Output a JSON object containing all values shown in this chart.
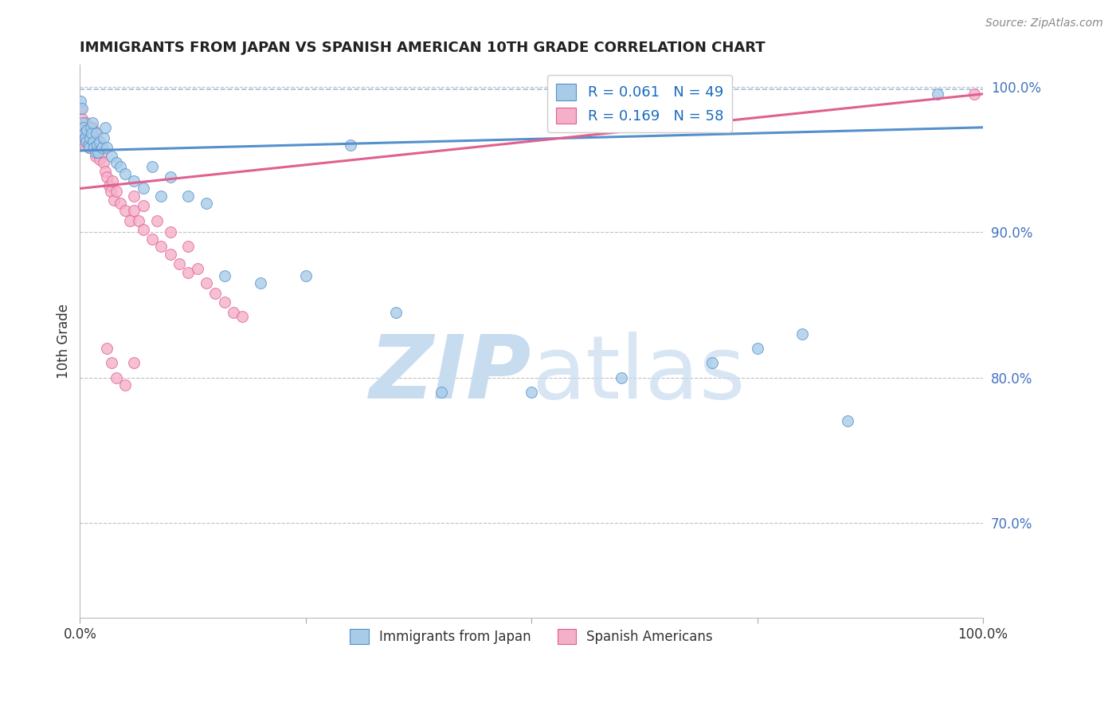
{
  "title": "IMMIGRANTS FROM JAPAN VS SPANISH AMERICAN 10TH GRADE CORRELATION CHART",
  "source_text": "Source: ZipAtlas.com",
  "ylabel": "10th Grade",
  "xlim": [
    0.0,
    1.0
  ],
  "ylim": [
    0.635,
    1.015
  ],
  "right_yticks": [
    0.7,
    0.8,
    0.9,
    1.0
  ],
  "right_yticklabels": [
    "70.0%",
    "80.0%",
    "90.0%",
    "100.0%"
  ],
  "legend_entries": [
    {
      "label": "R = 0.061   N = 49"
    },
    {
      "label": "R = 0.169   N = 58"
    }
  ],
  "bottom_legend": [
    {
      "label": "Immigrants from Japan"
    },
    {
      "label": "Spanish Americans"
    }
  ],
  "blue_scatter_x": [
    0.001,
    0.002,
    0.003,
    0.004,
    0.005,
    0.006,
    0.007,
    0.008,
    0.009,
    0.01,
    0.011,
    0.012,
    0.013,
    0.014,
    0.015,
    0.016,
    0.017,
    0.018,
    0.019,
    0.02,
    0.022,
    0.024,
    0.026,
    0.028,
    0.03,
    0.035,
    0.04,
    0.045,
    0.05,
    0.06,
    0.07,
    0.08,
    0.09,
    0.1,
    0.12,
    0.14,
    0.16,
    0.2,
    0.25,
    0.3,
    0.35,
    0.4,
    0.5,
    0.6,
    0.7,
    0.75,
    0.8,
    0.85,
    0.95
  ],
  "blue_scatter_y": [
    0.99,
    0.985,
    0.975,
    0.972,
    0.968,
    0.965,
    0.962,
    0.97,
    0.96,
    0.958,
    0.965,
    0.972,
    0.968,
    0.975,
    0.962,
    0.958,
    0.955,
    0.968,
    0.96,
    0.955,
    0.962,
    0.958,
    0.965,
    0.972,
    0.958,
    0.952,
    0.948,
    0.945,
    0.94,
    0.935,
    0.93,
    0.945,
    0.925,
    0.938,
    0.925,
    0.92,
    0.87,
    0.865,
    0.87,
    0.96,
    0.845,
    0.79,
    0.79,
    0.8,
    0.81,
    0.82,
    0.83,
    0.77,
    0.995
  ],
  "pink_scatter_x": [
    0.001,
    0.002,
    0.003,
    0.004,
    0.005,
    0.006,
    0.007,
    0.008,
    0.009,
    0.01,
    0.011,
    0.012,
    0.013,
    0.014,
    0.015,
    0.016,
    0.017,
    0.018,
    0.019,
    0.02,
    0.022,
    0.024,
    0.026,
    0.028,
    0.03,
    0.032,
    0.034,
    0.036,
    0.038,
    0.04,
    0.045,
    0.05,
    0.055,
    0.06,
    0.065,
    0.07,
    0.08,
    0.09,
    0.1,
    0.11,
    0.12,
    0.13,
    0.14,
    0.15,
    0.16,
    0.17,
    0.18,
    0.06,
    0.07,
    0.085,
    0.1,
    0.12,
    0.03,
    0.035,
    0.04,
    0.05,
    0.06,
    0.99
  ],
  "pink_scatter_y": [
    0.985,
    0.978,
    0.972,
    0.968,
    0.965,
    0.96,
    0.975,
    0.968,
    0.962,
    0.958,
    0.972,
    0.965,
    0.958,
    0.972,
    0.965,
    0.958,
    0.952,
    0.968,
    0.955,
    0.96,
    0.95,
    0.955,
    0.948,
    0.942,
    0.938,
    0.932,
    0.928,
    0.935,
    0.922,
    0.928,
    0.92,
    0.915,
    0.908,
    0.915,
    0.908,
    0.902,
    0.895,
    0.89,
    0.885,
    0.878,
    0.872,
    0.875,
    0.865,
    0.858,
    0.852,
    0.845,
    0.842,
    0.925,
    0.918,
    0.908,
    0.9,
    0.89,
    0.82,
    0.81,
    0.8,
    0.795,
    0.81,
    0.995
  ],
  "blue_line_x": [
    0.0,
    1.0
  ],
  "blue_line_y": [
    0.956,
    0.972
  ],
  "pink_line_x": [
    0.0,
    1.0
  ],
  "pink_line_y": [
    0.93,
    0.995
  ],
  "dashed_line_y": 0.998,
  "scatter_size": 100,
  "blue_color": "#a8cce8",
  "blue_edge": "#5590cc",
  "pink_color": "#f4b0c8",
  "pink_edge": "#e06090",
  "grid_color": "#bbbbbb",
  "dashed_grid_style": "--",
  "background_color": "#ffffff",
  "title_fontsize": 13,
  "watermark_zip_color": "#c8dcf0",
  "watermark_atlas_color": "#c8dcf0"
}
